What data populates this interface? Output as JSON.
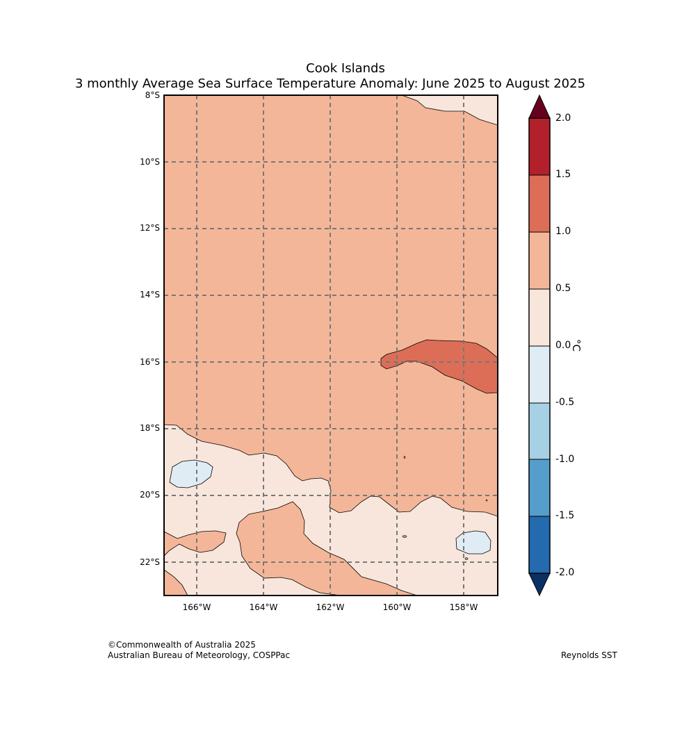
{
  "title": {
    "line1": "Cook Islands",
    "line2": "3 monthly Average Sea Surface Temperature Anomaly: June 2025 to August 2025"
  },
  "map": {
    "lat_labels": [
      "8°S",
      "10°S",
      "12°S",
      "14°S",
      "16°S",
      "18°S",
      "20°S",
      "22°S"
    ],
    "lon_labels": [
      "166°W",
      "164°W",
      "162°W",
      "160°W",
      "158°W"
    ],
    "extent": {
      "lon_min": -167,
      "lon_max": -157,
      "lat_min": -23,
      "lat_max": -8
    }
  },
  "colorbar": {
    "unit": "°C",
    "labels": [
      "2.0",
      "1.5",
      "1.0",
      "0.5",
      "0.0",
      "-0.5",
      "-1.0",
      "-1.5",
      "-2.0"
    ],
    "colors": {
      "above_max": "#67001f",
      "1.5_2.0": "#b2202c",
      "1.0_1.5": "#dc6e57",
      "0.5_1.0": "#f4b698",
      "0.0_0.5": "#f8e6dc",
      "-0.5_0.0": "#e0ecf3",
      "-1.0_-0.5": "#a6d0e4",
      "-1.5_-1.0": "#559ecb",
      "-2.0_-1.5": "#246aae",
      "below_min": "#0a3164"
    }
  },
  "footer": {
    "copyright": "©Commonwealth of Australia 2025",
    "agency": "Australian Bureau of Meteorology, COSPPac",
    "source": "Reynolds SST"
  }
}
